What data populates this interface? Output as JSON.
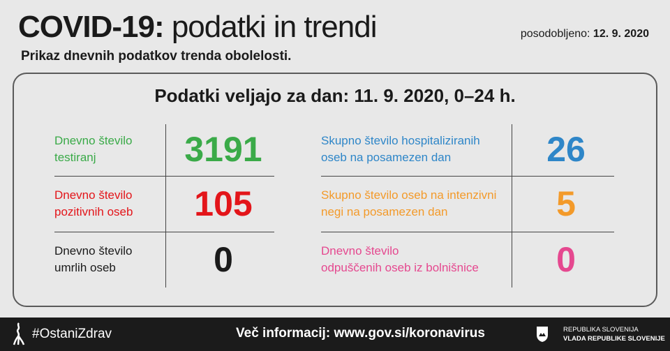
{
  "header": {
    "title_bold": "COVID-19:",
    "title_light": "podatki in trendi",
    "updated_label": "posodobljeno:",
    "updated_date": "12. 9. 2020",
    "subtitle": "Prikaz dnevnih podatkov trenda obolelosti."
  },
  "panel": {
    "title": "Podatki veljajo za dan: 11. 9. 2020, 0–24 h.",
    "left": [
      {
        "label1": "Dnevno število",
        "label2": "testiranj",
        "value": "3191",
        "color": "#3aaa48"
      },
      {
        "label1": "Dnevno število",
        "label2": "pozitivnih oseb",
        "value": "105",
        "color": "#e3151a"
      },
      {
        "label1": "Dnevno število",
        "label2": "umrlih oseb",
        "value": "0",
        "color": "#1a1a1a"
      }
    ],
    "right": [
      {
        "label1": "Skupno število hospitaliziranih",
        "label2": "oseb na posamezen dan",
        "value": "26",
        "color": "#2e86c8"
      },
      {
        "label1": "Skupno število oseb na intenzivni",
        "label2": "negi na posamezen dan",
        "value": "5",
        "color": "#f39a2a"
      },
      {
        "label1": "Dnevno število",
        "label2": "odpuščenih oseb iz bolnišnice",
        "value": "0",
        "color": "#e5488f"
      }
    ]
  },
  "footer": {
    "hashtag": "#OstaniZdrav",
    "info": "Več informacij: www.gov.si/koronavirus",
    "gov1": "REPUBLIKA SLOVENIJA",
    "gov2": "VLADA REPUBLIKE SLOVENIJE"
  }
}
